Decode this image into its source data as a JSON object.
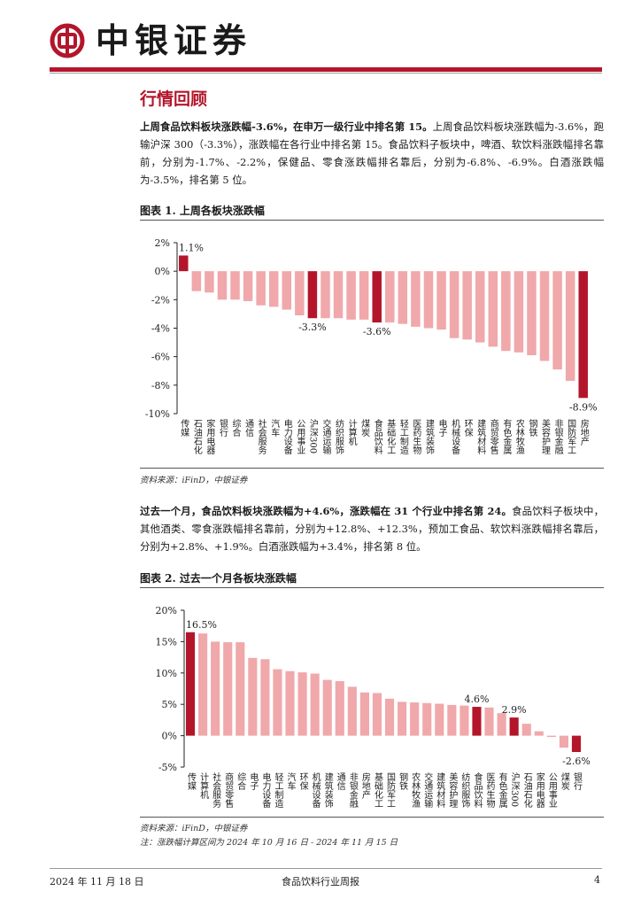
{
  "header": {
    "brand": "中银证券"
  },
  "section_title": "行情回顾",
  "para1": {
    "bold": "上周食品饮料板块涨跌幅-3.6%，在申万一级行业中排名第 15。",
    "rest": "上周食品饮料板块涨跌幅为-3.6%，跑输沪深 300（-3.3%），涨跌幅在各行业中排名第 15。食品饮料子板块中，啤酒、软饮料涨跌幅排名靠前，分别为-1.7%、-2.2%，保健品、零食涨跌幅排名靠后，分别为-6.8%、-6.9%。白酒涨跌幅为-3.5%，排名第 5 位。"
  },
  "figure1": {
    "title": "图表 1. 上周各板块涨跌幅",
    "source": "资料来源：iFinD，中银证券"
  },
  "para2": {
    "bold": "过去一个月，食品饮料板块涨跌幅为+4.6%，涨跌幅在 31 个行业中排名第 24。",
    "rest": "食品饮料子板块中，其他酒类、零食涨跌幅排名靠前，分别为+12.8%、+12.3%，预加工食品、软饮料涨跌幅排名靠后，分别为+2.8%、+1.9%。白酒涨跌幅为+3.4%，排名第 8 位。"
  },
  "figure2": {
    "title": "图表 2. 过去一个月各板块涨跌幅",
    "source": "资料来源：iFinD，中银证券",
    "note": "注：涨跌幅计算区间为 2024 年 10 月 16 日 - 2024 年 11 月 15 日"
  },
  "footer": {
    "date": "2024 年 11 月 18 日",
    "report_name": "食品饮料行业周报",
    "page": "4"
  },
  "colors": {
    "accent": "#b3162b",
    "bar_light": "#f0a8ab",
    "bar_highlight": "#b3162b"
  },
  "chart_data": [
    {
      "type": "bar",
      "title": "图表 1. 上周各板块涨跌幅",
      "ylim": [
        -10,
        2
      ],
      "yticks": [
        "2%",
        "0%",
        "-2%",
        "-4%",
        "-6%",
        "-8%",
        "-10%"
      ],
      "categories": [
        "传媒",
        "石油石化",
        "家用电器",
        "银行",
        "综合",
        "通信",
        "社会服务",
        "汽车",
        "电力设备",
        "公用事业",
        "沪深300",
        "交通运输",
        "纺织服饰",
        "计算机",
        "煤炭",
        "食品饮料",
        "基础化工",
        "轻工制造",
        "医药生物",
        "建筑装饰",
        "电子",
        "机械设备",
        "环保",
        "建筑材料",
        "商贸零售",
        "有色金属",
        "农林牧渔",
        "钢铁",
        "美容护理",
        "非银金融",
        "国防军工",
        "房地产"
      ],
      "values": [
        1.1,
        -1.4,
        -1.5,
        -2.0,
        -2.0,
        -2.1,
        -2.4,
        -2.5,
        -2.7,
        -3.1,
        -3.3,
        -3.3,
        -3.3,
        -3.4,
        -3.4,
        -3.6,
        -3.6,
        -3.7,
        -3.9,
        -4.0,
        -4.1,
        -4.7,
        -4.8,
        -5.0,
        -5.3,
        -5.6,
        -5.7,
        -5.9,
        -6.3,
        -6.9,
        -7.7,
        -8.9
      ],
      "highlighted": [
        "沪深300",
        "食品饮料",
        "传媒",
        "房地产"
      ],
      "data_labels": [
        {
          "category": "传媒",
          "text": "1.1%"
        },
        {
          "category": "沪深300",
          "text": "-3.3%"
        },
        {
          "category": "食品饮料",
          "text": "-3.6%"
        },
        {
          "category": "房地产",
          "text": "-8.9%"
        }
      ]
    },
    {
      "type": "bar",
      "title": "图表 2. 过去一个月各板块涨跌幅",
      "ylim": [
        -5,
        20
      ],
      "yticks": [
        "20%",
        "15%",
        "10%",
        "5%",
        "0%",
        "-5%"
      ],
      "categories": [
        "传媒",
        "计算机",
        "社会服务",
        "商贸零售",
        "综合",
        "电子",
        "电力设备",
        "轻工制造",
        "汽车",
        "环保",
        "机械设备",
        "建筑装饰",
        "通信",
        "非银金融",
        "房地产",
        "基础化工",
        "国防军工",
        "钢铁",
        "农林牧渔",
        "交通运输",
        "建筑材料",
        "美容护理",
        "纺织服饰",
        "食品饮料",
        "医药生物",
        "有色金属",
        "沪深300",
        "石油石化",
        "家用电器",
        "公用事业",
        "煤炭",
        "银行"
      ],
      "values": [
        16.5,
        16.3,
        15.0,
        14.9,
        14.9,
        12.4,
        12.2,
        10.6,
        10.3,
        10.1,
        9.9,
        8.9,
        8.7,
        7.8,
        6.9,
        6.8,
        5.9,
        5.4,
        5.3,
        5.2,
        5.1,
        4.9,
        4.8,
        4.6,
        4.5,
        3.6,
        2.9,
        1.9,
        0.7,
        -0.2,
        -1.9,
        -2.6
      ],
      "highlighted": [
        "传媒",
        "食品饮料",
        "沪深300",
        "银行"
      ],
      "data_labels": [
        {
          "category": "传媒",
          "text": "16.5%"
        },
        {
          "category": "食品饮料",
          "text": "4.6%"
        },
        {
          "category": "沪深300",
          "text": "2.9%"
        },
        {
          "category": "银行",
          "text": "-2.6%"
        }
      ]
    }
  ]
}
